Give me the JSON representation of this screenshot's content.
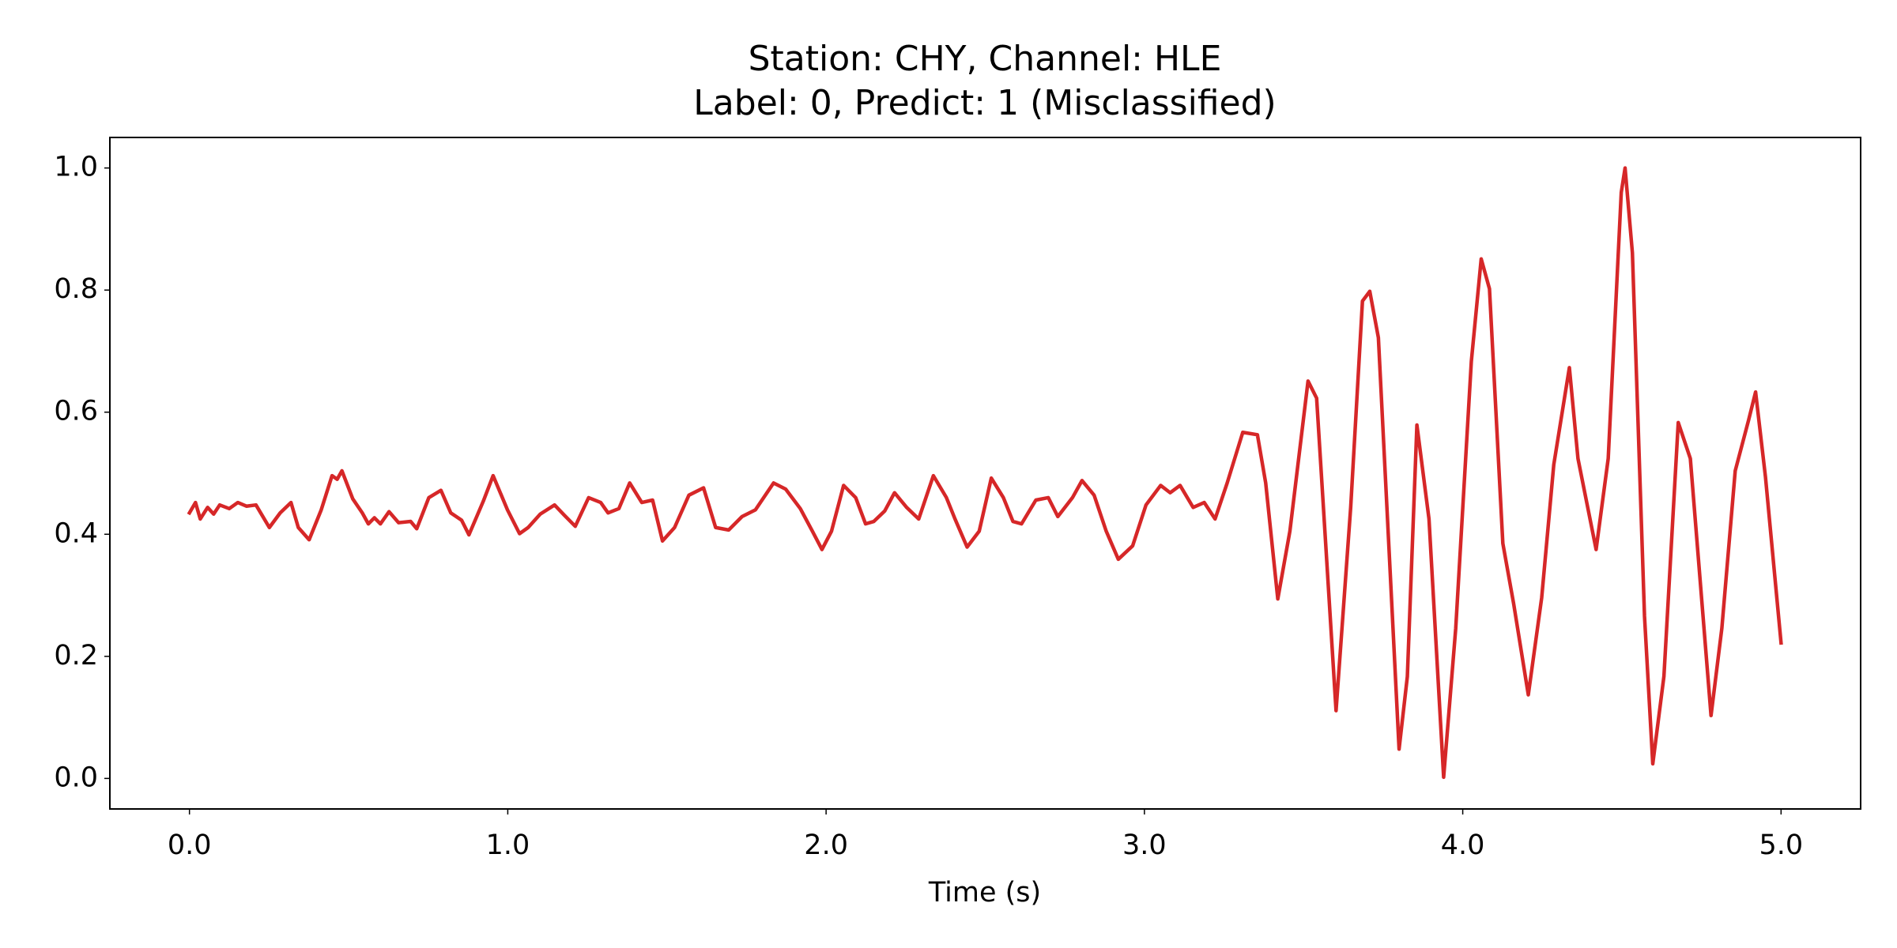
{
  "chart_data": {
    "type": "line",
    "title": [
      "Station: CHY, Channel: HLE",
      "Label: 0, Predict: 1 (Misclassified)"
    ],
    "xlabel": "Time (s)",
    "color": "#d62728",
    "xlim": [
      -0.25,
      5.25
    ],
    "ylim": [
      -0.05,
      1.05
    ],
    "xticks": [
      {
        "value": 0,
        "label": "0.0"
      },
      {
        "value": 1,
        "label": "1.0"
      },
      {
        "value": 2,
        "label": "2.0"
      },
      {
        "value": 3,
        "label": "3.0"
      },
      {
        "value": 4,
        "label": "4.0"
      },
      {
        "value": 5,
        "label": "5.0"
      }
    ],
    "yticks": [
      {
        "value": 0,
        "label": "0.0"
      },
      0.2,
      0.4,
      0.6,
      0.8,
      {
        "value": 1,
        "label": "1.0"
      }
    ],
    "grid": false,
    "x": [
      0.0,
      0.019,
      0.034,
      0.057,
      0.076,
      0.095,
      0.125,
      0.152,
      0.179,
      0.209,
      0.251,
      0.285,
      0.319,
      0.342,
      0.376,
      0.414,
      0.448,
      0.464,
      0.479,
      0.513,
      0.543,
      0.562,
      0.581,
      0.6,
      0.627,
      0.657,
      0.695,
      0.714,
      0.752,
      0.79,
      0.821,
      0.855,
      0.878,
      0.923,
      0.954,
      0.999,
      1.037,
      1.064,
      1.102,
      1.147,
      1.178,
      1.212,
      1.254,
      1.292,
      1.315,
      1.349,
      1.383,
      1.421,
      1.455,
      1.486,
      1.524,
      1.569,
      1.615,
      1.653,
      1.694,
      1.736,
      1.778,
      1.835,
      1.873,
      1.919,
      1.957,
      1.987,
      2.017,
      2.055,
      2.093,
      2.124,
      2.15,
      2.184,
      2.215,
      2.253,
      2.291,
      2.337,
      2.378,
      2.405,
      2.443,
      2.481,
      2.519,
      2.557,
      2.587,
      2.614,
      2.659,
      2.698,
      2.728,
      2.774,
      2.804,
      2.842,
      2.88,
      2.918,
      2.963,
      3.005,
      3.051,
      3.081,
      3.112,
      3.153,
      3.188,
      3.222,
      3.26,
      3.309,
      3.355,
      3.381,
      3.419,
      3.457,
      3.514,
      3.541,
      3.602,
      3.648,
      3.685,
      3.708,
      3.735,
      3.8,
      3.826,
      3.856,
      3.894,
      3.94,
      3.978,
      4.027,
      4.058,
      4.084,
      4.126,
      4.16,
      4.206,
      4.248,
      4.286,
      4.335,
      4.362,
      4.419,
      4.457,
      4.498,
      4.51,
      4.533,
      4.571,
      4.597,
      4.632,
      4.677,
      4.715,
      4.78,
      4.814,
      4.856,
      4.898,
      4.92,
      4.951,
      5.0
    ],
    "values": [
      0.435,
      0.452,
      0.425,
      0.444,
      0.433,
      0.448,
      0.442,
      0.452,
      0.446,
      0.448,
      0.411,
      0.435,
      0.452,
      0.411,
      0.391,
      0.44,
      0.496,
      0.49,
      0.504,
      0.458,
      0.435,
      0.417,
      0.427,
      0.417,
      0.437,
      0.419,
      0.421,
      0.409,
      0.46,
      0.472,
      0.435,
      0.423,
      0.399,
      0.454,
      0.496,
      0.44,
      0.401,
      0.411,
      0.433,
      0.448,
      0.431,
      0.413,
      0.46,
      0.452,
      0.435,
      0.442,
      0.484,
      0.452,
      0.456,
      0.389,
      0.411,
      0.464,
      0.476,
      0.411,
      0.407,
      0.429,
      0.44,
      0.484,
      0.474,
      0.442,
      0.405,
      0.375,
      0.405,
      0.48,
      0.46,
      0.417,
      0.421,
      0.438,
      0.468,
      0.444,
      0.425,
      0.496,
      0.46,
      0.425,
      0.379,
      0.405,
      0.492,
      0.46,
      0.421,
      0.417,
      0.456,
      0.46,
      0.429,
      0.46,
      0.488,
      0.464,
      0.405,
      0.359,
      0.381,
      0.448,
      0.48,
      0.468,
      0.48,
      0.444,
      0.452,
      0.425,
      0.484,
      0.567,
      0.563,
      0.484,
      0.294,
      0.405,
      0.651,
      0.623,
      0.111,
      0.444,
      0.782,
      0.798,
      0.722,
      0.048,
      0.167,
      0.579,
      0.425,
      0.002,
      0.246,
      0.683,
      0.851,
      0.802,
      0.385,
      0.286,
      0.137,
      0.296,
      0.514,
      0.673,
      0.524,
      0.375,
      0.524,
      0.96,
      1.0,
      0.861,
      0.266,
      0.024,
      0.167,
      0.583,
      0.524,
      0.103,
      0.246,
      0.504,
      0.587,
      0.633,
      0.494,
      0.222
    ]
  }
}
